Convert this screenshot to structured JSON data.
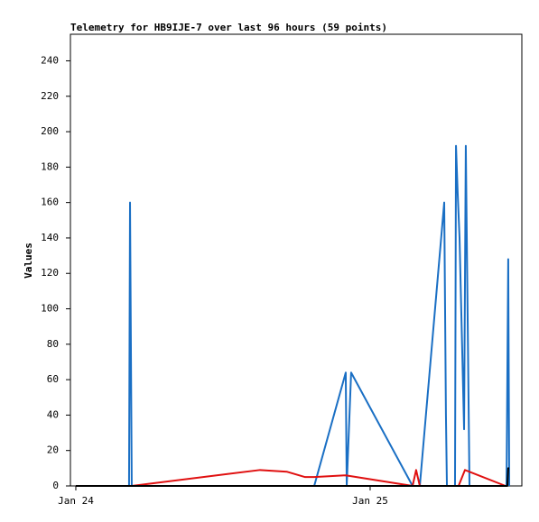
{
  "chart_data": {
    "type": "line",
    "title": "Telemetry for HB9IJE-7 over last 96 hours (59 points)",
    "y_label": "Values",
    "xlim": [
      -0.44,
      36.37
    ],
    "xticks": [
      {
        "value": 0,
        "label": "Jan 24"
      },
      {
        "value": 24,
        "label": "Jan 25"
      }
    ],
    "ylim": [
      0,
      255
    ],
    "yticks": [
      0,
      20,
      40,
      60,
      80,
      100,
      120,
      140,
      160,
      180,
      200,
      220,
      240
    ],
    "series": [
      {
        "color": "#1a6fc4",
        "x": [
          0,
          4.34,
          4.42,
          4.49,
          4.56,
          19.44,
          22.01,
          22.09,
          22.45,
          27.46,
          28.05,
          30.04,
          30.18,
          30.26,
          30.92,
          31.0,
          31.14,
          31.29,
          31.66,
          31.8,
          31.95,
          32.1,
          35.12,
          35.19,
          35.26,
          35.34
        ],
        "values": [
          0,
          0,
          160,
          80,
          0,
          0,
          64,
          0,
          64,
          0,
          0,
          160,
          40,
          0,
          0,
          192,
          165,
          140,
          32,
          192,
          96,
          0,
          0,
          64,
          128,
          0
        ]
      },
      {
        "color": "#e01010",
        "x": [
          0,
          4.56,
          15.02,
          17.23,
          18.7,
          19.44,
          22.01,
          27.46,
          27.75,
          28.05,
          31.21,
          31.73,
          35.04
        ],
        "values": [
          0,
          0,
          9,
          8,
          5,
          5,
          6,
          0,
          9,
          0,
          0,
          9,
          0
        ]
      },
      {
        "color": "#000000",
        "x": [
          0,
          35.19,
          35.26,
          35.34
        ],
        "values": [
          0,
          0,
          10,
          10
        ]
      }
    ]
  }
}
